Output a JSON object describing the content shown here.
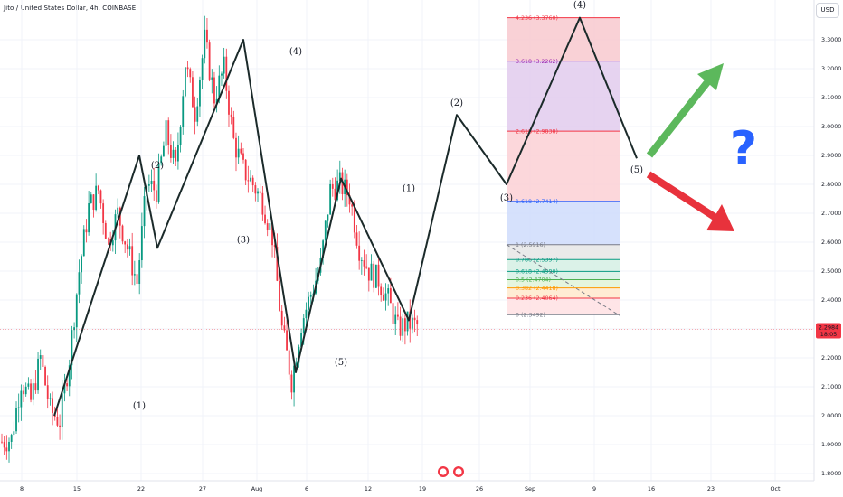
{
  "header": {
    "title": "Jito / United States Dollar, 4h, COINBASE",
    "currency_button": "USD"
  },
  "price_tag": {
    "value": "2.2984",
    "countdown": "18:05",
    "color": "#f23645"
  },
  "colors": {
    "up": "#089981",
    "down": "#f23645",
    "wave": "#1b2a2a",
    "green_arrow": "#5cb85c",
    "red_arrow": "#e8323c",
    "question": "#2962ff"
  },
  "chart_data": {
    "type": "candlestick",
    "symbol": "Jito / United States Dollar",
    "interval": "4h",
    "exchange": "COINBASE",
    "ylim": [
      1.78,
      3.4
    ],
    "y_ticks": [
      "3.3000",
      "3.2000",
      "3.1000",
      "3.0000",
      "2.9000",
      "2.8000",
      "2.7000",
      "2.6000",
      "2.5000",
      "2.4000",
      "2.3000",
      "2.2000",
      "2.1000",
      "2.0000",
      "1.9000",
      "1.8000"
    ],
    "x_ticks": [
      "8",
      "15",
      "22",
      "27",
      "Aug",
      "6",
      "12",
      "19",
      "26",
      "Sep",
      "9",
      "16",
      "23",
      "Oct"
    ],
    "last_price": 2.2984,
    "price_path": [
      [
        0,
        1.91
      ],
      [
        4,
        1.92
      ],
      [
        8,
        2.12
      ],
      [
        12,
        2.05
      ],
      [
        16,
        2.2
      ],
      [
        20,
        2.02
      ],
      [
        24,
        1.98
      ],
      [
        28,
        2.2
      ],
      [
        32,
        2.5
      ],
      [
        36,
        2.72
      ],
      [
        40,
        2.78
      ],
      [
        44,
        2.6
      ],
      [
        48,
        2.7
      ],
      [
        52,
        2.58
      ],
      [
        56,
        2.46
      ],
      [
        60,
        2.8
      ],
      [
        64,
        2.78
      ],
      [
        68,
        2.98
      ],
      [
        72,
        2.85
      ],
      [
        76,
        3.22
      ],
      [
        80,
        3.05
      ],
      [
        84,
        3.3
      ],
      [
        88,
        3.1
      ],
      [
        92,
        3.2
      ],
      [
        96,
        2.95
      ],
      [
        100,
        2.85
      ],
      [
        104,
        2.8
      ],
      [
        108,
        2.74
      ],
      [
        112,
        2.62
      ],
      [
        116,
        2.3
      ],
      [
        120,
        2.12
      ],
      [
        124,
        2.32
      ],
      [
        128,
        2.42
      ],
      [
        132,
        2.52
      ],
      [
        136,
        2.78
      ],
      [
        140,
        2.8
      ],
      [
        144,
        2.76
      ],
      [
        148,
        2.58
      ],
      [
        152,
        2.5
      ],
      [
        156,
        2.47
      ],
      [
        160,
        2.4
      ],
      [
        164,
        2.3
      ],
      [
        168,
        2.32
      ],
      [
        172,
        2.31
      ]
    ],
    "elliott_waves": {
      "history": [
        {
          "label": "(1)",
          "price": 2.9
        },
        {
          "label": "(2)",
          "price": 2.58
        },
        {
          "label": "(3)",
          "price": 3.3
        },
        {
          "label": "(4)",
          "price": 2.15
        },
        {
          "label": "(5)",
          "price": 2.82
        },
        {
          "label": "(1)",
          "price": 2.33
        }
      ],
      "projection": [
        {
          "label": "(2)",
          "price": 3.04
        },
        {
          "label": "(3)",
          "price": 2.8
        },
        {
          "label": "(4)",
          "price": 3.376
        },
        {
          "label": "(5)",
          "price": 2.89
        }
      ]
    },
    "fibonacci": [
      {
        "label": "4.236 (3.3760)",
        "level": 4.236,
        "price": 3.376,
        "color": "#f23645"
      },
      {
        "label": "3.618 (3.2262)",
        "level": 3.618,
        "price": 3.2262,
        "color": "#9c27b0"
      },
      {
        "label": "2.618 (2.9838)",
        "level": 2.618,
        "price": 2.9838,
        "color": "#f23645"
      },
      {
        "label": "1.618 (2.7414)",
        "level": 1.618,
        "price": 2.7414,
        "color": "#2962ff"
      },
      {
        "label": "1 (2.5916)",
        "level": 1,
        "price": 2.5916,
        "color": "#787b86"
      },
      {
        "label": "0.786 (2.5397)",
        "level": 0.786,
        "price": 2.5397,
        "color": "#089981"
      },
      {
        "label": "0.618 (2.4990)",
        "level": 0.618,
        "price": 2.499,
        "color": "#089981"
      },
      {
        "label": "0.5 (2.4704)",
        "level": 0.5,
        "price": 2.4704,
        "color": "#4caf50"
      },
      {
        "label": "0.382 (2.4418)",
        "level": 0.382,
        "price": 2.4418,
        "color": "#ff9800"
      },
      {
        "label": "0.236 (2.4064)",
        "level": 0.236,
        "price": 2.4064,
        "color": "#f23645"
      },
      {
        "label": "0 (2.3492)",
        "level": 0,
        "price": 2.3492,
        "color": "#787b86"
      }
    ],
    "fib_zone_fills": [
      "#f8c9cf",
      "#e2cbed",
      "#fbd0d5",
      "#cfdcfc",
      "#e6e6e6",
      "#d5f0e4",
      "#d5f0e4",
      "#e1f3d8",
      "#ffe9cc",
      "#ffe1e3"
    ],
    "annotations": [
      "up-arrow",
      "down-arrow",
      "question-mark"
    ]
  }
}
